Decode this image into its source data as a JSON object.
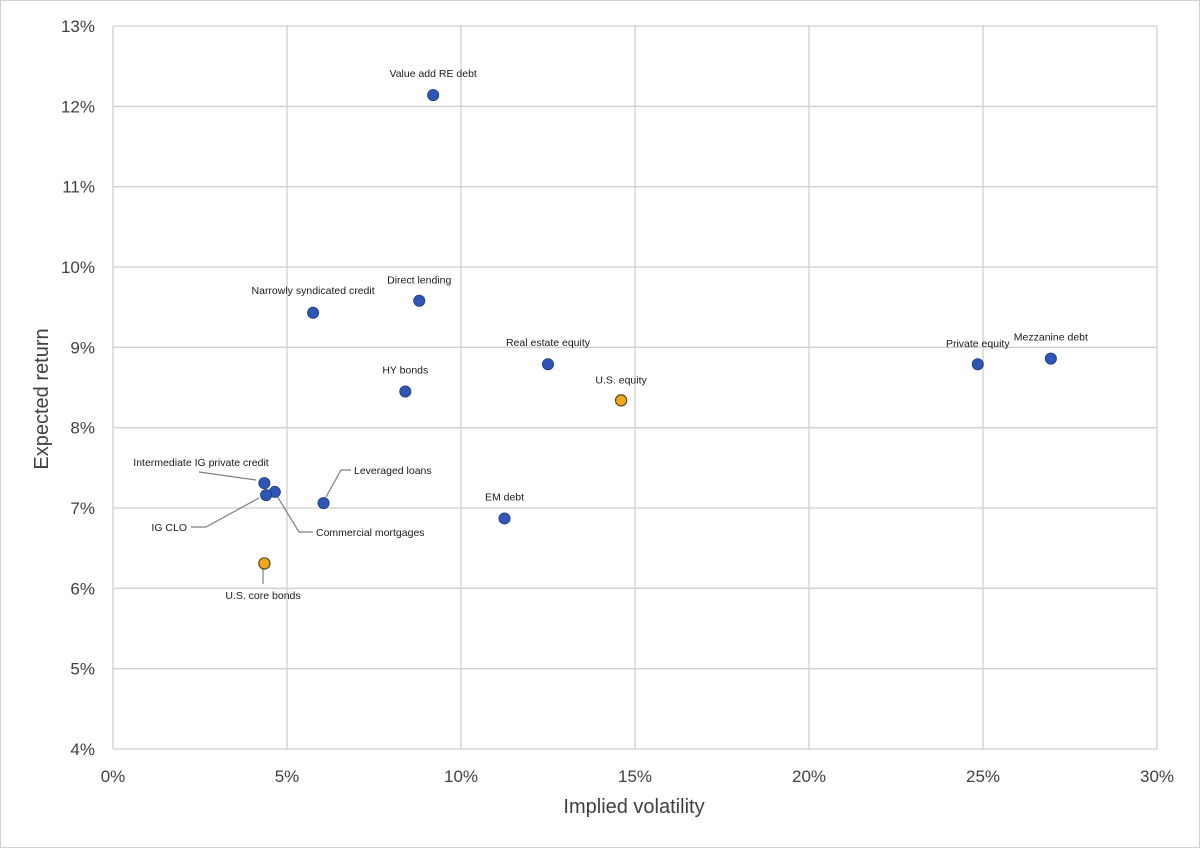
{
  "colors": {
    "primary_point": "#2f55b5",
    "highlight_point": "#f2a71b",
    "point_stroke": "#1f3b7a",
    "highlight_stroke": "#5a4a2a"
  },
  "chart_data": {
    "type": "scatter",
    "title": "",
    "xlabel": "Implied volatility",
    "ylabel": "Expected return",
    "xlim": [
      0,
      30
    ],
    "ylim": [
      4,
      13
    ],
    "x_ticks": [
      "0%",
      "5%",
      "10%",
      "15%",
      "20%",
      "25%",
      "30%"
    ],
    "y_ticks": [
      "4%",
      "5%",
      "6%",
      "7%",
      "8%",
      "9%",
      "10%",
      "11%",
      "12%",
      "13%"
    ],
    "grid": true,
    "legend": "none",
    "points": [
      {
        "label": "Value add RE debt",
        "x": 9.2,
        "y": 12.14,
        "highlight": false
      },
      {
        "label": "Narrowly syndicated credit",
        "x": 5.75,
        "y": 9.43,
        "highlight": false
      },
      {
        "label": "Direct lending",
        "x": 8.8,
        "y": 9.58,
        "highlight": false
      },
      {
        "label": "Real estate equity",
        "x": 12.5,
        "y": 8.79,
        "highlight": false
      },
      {
        "label": "HY bonds",
        "x": 8.4,
        "y": 8.45,
        "highlight": false
      },
      {
        "label": "U.S. equity",
        "x": 14.6,
        "y": 8.34,
        "highlight": true
      },
      {
        "label": "Private equity",
        "x": 24.85,
        "y": 8.79,
        "highlight": false
      },
      {
        "label": "Mezzanine debt",
        "x": 26.95,
        "y": 8.86,
        "highlight": false
      },
      {
        "label": "Intermediate IG private credit",
        "x": 4.35,
        "y": 7.31,
        "highlight": false
      },
      {
        "label": "Commercial mortgages",
        "x": 4.65,
        "y": 7.2,
        "highlight": false
      },
      {
        "label": "IG CLO",
        "x": 4.4,
        "y": 7.16,
        "highlight": false
      },
      {
        "label": "Leveraged loans",
        "x": 6.05,
        "y": 7.06,
        "highlight": false
      },
      {
        "label": "EM debt",
        "x": 11.25,
        "y": 6.87,
        "highlight": false
      },
      {
        "label": "U.S. core bonds",
        "x": 4.35,
        "y": 6.31,
        "highlight": true
      }
    ]
  }
}
